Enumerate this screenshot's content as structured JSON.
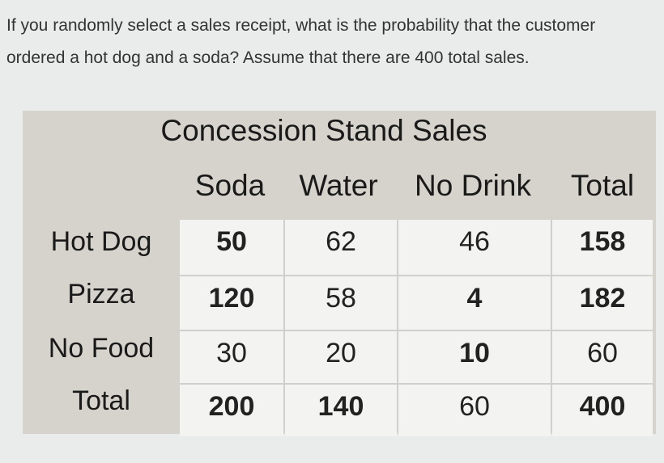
{
  "question": "If you randomly select a sales receipt, what is the probability that the customer ordered a hot dog and a soda? Assume that there are 400 total sales.",
  "table": {
    "title": "Concession Stand Sales",
    "columns": [
      "Soda",
      "Water",
      "No Drink",
      "Total"
    ],
    "rows": [
      {
        "label": "Hot Dog",
        "values": [
          "50",
          "62",
          "46",
          "158"
        ],
        "bold": [
          true,
          false,
          false,
          true
        ]
      },
      {
        "label": "Pizza",
        "values": [
          "120",
          "58",
          "4",
          "182"
        ],
        "bold": [
          true,
          false,
          true,
          true
        ]
      },
      {
        "label": "No Food",
        "values": [
          "30",
          "20",
          "10",
          "60"
        ],
        "bold": [
          false,
          false,
          true,
          false
        ]
      },
      {
        "label": "Total",
        "values": [
          "200",
          "140",
          "60",
          "400"
        ],
        "bold": [
          true,
          true,
          false,
          true
        ]
      }
    ]
  }
}
